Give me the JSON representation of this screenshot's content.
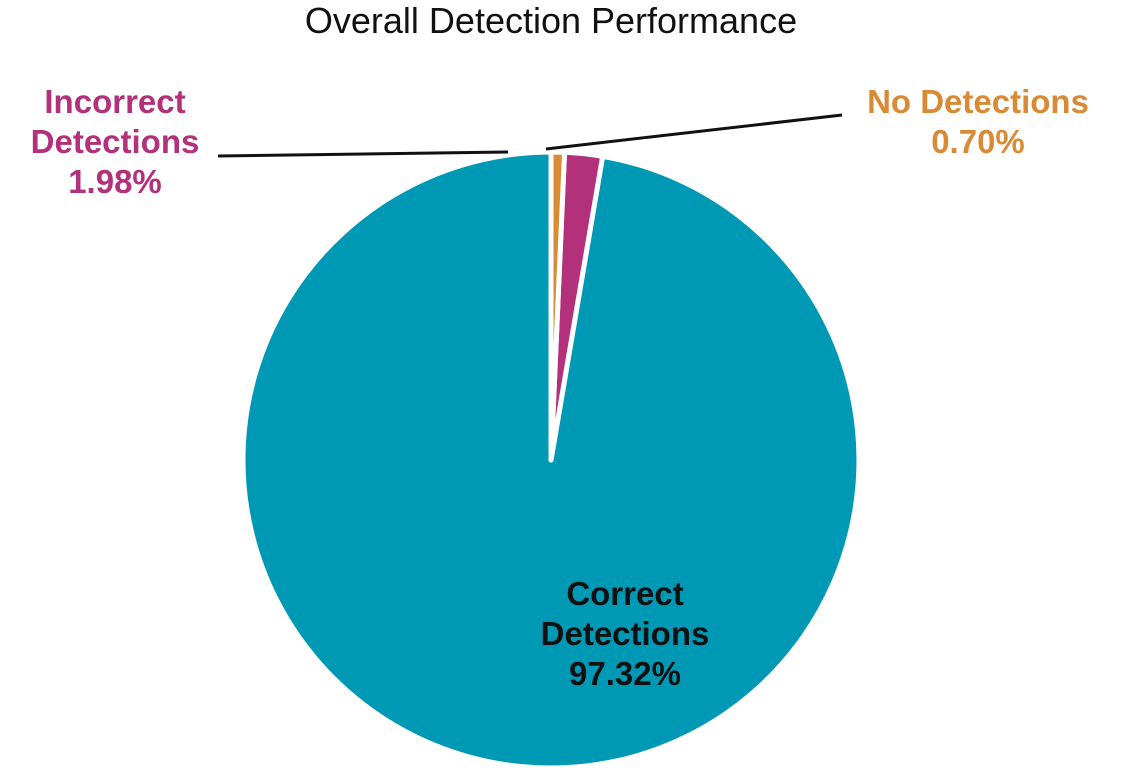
{
  "chart_data": {
    "type": "pie",
    "title": "Overall Detection Performance",
    "unit": "%",
    "slices": [
      {
        "key": "correct",
        "label_lines": [
          "Correct",
          "Detections",
          "97.32%"
        ],
        "value": 97.32,
        "color": "#0099b5",
        "label_color": "#111111"
      },
      {
        "key": "incorrect",
        "label_lines": [
          "Incorrect",
          "Detections",
          "1.98%"
        ],
        "value": 1.98,
        "color": "#b3317a",
        "label_color": "#b3317a"
      },
      {
        "key": "no-detections",
        "label_lines": [
          "No Detections",
          "0.70%"
        ],
        "value": 0.7,
        "color": "#d98a35",
        "label_color": "#d98a35"
      }
    ],
    "legend": "none",
    "start_angle_deg": 0,
    "direction": "counterclockwise",
    "leader_lines": true
  }
}
